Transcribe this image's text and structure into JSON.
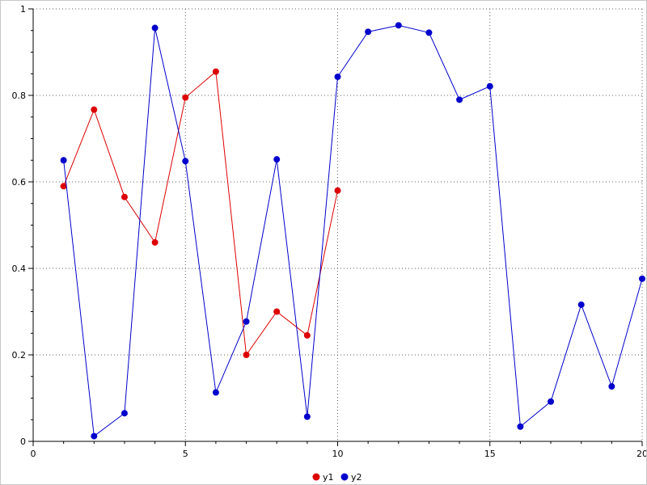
{
  "figure": {
    "background": "#ffffff",
    "border_color": "#c8c8c8"
  },
  "chart_data": {
    "type": "line",
    "title": "",
    "xlabel": "",
    "ylabel": "",
    "xlim": [
      0,
      20
    ],
    "ylim": [
      0,
      1
    ],
    "x_ticks": [
      0,
      5,
      10,
      15,
      20
    ],
    "y_ticks": [
      0,
      0.2,
      0.4,
      0.6,
      0.8,
      1
    ],
    "x_minor_step": 1,
    "y_minor_step": 0.05,
    "grid": true,
    "grid_color": "#606060",
    "axis_color": "#000000",
    "tick_label_color": "#000000",
    "legend_position": "bottom-center",
    "legend": [
      "y1",
      "y2"
    ],
    "series": [
      {
        "name": "y1",
        "color": "#dd0000",
        "marker": "circle",
        "x": [
          1,
          2,
          3,
          4,
          5,
          6,
          7,
          8,
          9,
          10
        ],
        "y": [
          0.59,
          0.767,
          0.565,
          0.46,
          0.795,
          0.855,
          0.2,
          0.3,
          0.245,
          0.58
        ]
      },
      {
        "name": "y2",
        "color": "#0000cc",
        "marker": "circle",
        "x": [
          1,
          2,
          3,
          4,
          5,
          6,
          7,
          8,
          9,
          10,
          11,
          12,
          13,
          14,
          15,
          16,
          17,
          18,
          19,
          20
        ],
        "y": [
          0.65,
          0.012,
          0.065,
          0.956,
          0.648,
          0.113,
          0.277,
          0.652,
          0.057,
          0.843,
          0.947,
          0.962,
          0.945,
          0.79,
          0.821,
          0.034,
          0.092,
          0.316,
          0.127,
          0.376
        ]
      }
    ]
  }
}
